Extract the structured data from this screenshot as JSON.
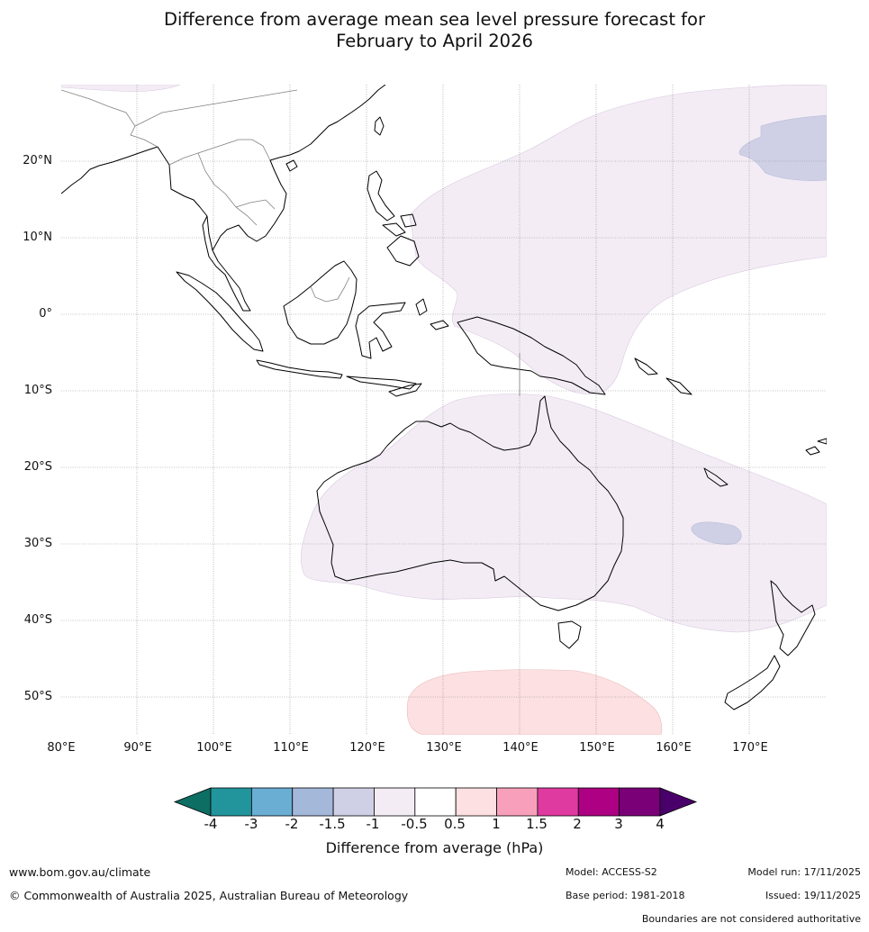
{
  "title_lines": [
    "Difference from average mean sea level pressure forecast for",
    "February to April 2026"
  ],
  "map": {
    "lat_labels": [
      "20°N",
      "10°N",
      "0°",
      "10°S",
      "20°S",
      "30°S",
      "40°S",
      "50°S"
    ],
    "lon_labels": [
      "80°E",
      "90°E",
      "100°E",
      "110°E",
      "120°E",
      "130°E",
      "140°E",
      "150°E",
      "160°E",
      "170°E"
    ],
    "anomaly_regions": [
      {
        "region": "tropical-western-pacific",
        "class": "-1 to -0.5"
      },
      {
        "region": "north-pacific-east",
        "class": "-1.5 to -1"
      },
      {
        "region": "northern-indochina",
        "class": "-1 to -0.5"
      },
      {
        "region": "australia-tasman",
        "class": "-1 to -0.5"
      },
      {
        "region": "coral-sea-new-caledonia",
        "class": "-1.5 to -1"
      },
      {
        "region": "southern-ocean-south-of-australia",
        "class": "0.5 to 1"
      }
    ]
  },
  "colorbar": {
    "colors": [
      "#0d6e63",
      "#21949c",
      "#6aaed4",
      "#a4b8da",
      "#cfd0e6",
      "#f3ecf5",
      "#ffffff",
      "#fde0e1",
      "#f8a0bb",
      "#de3aa0",
      "#ad0082",
      "#7a0078",
      "#4a006a"
    ],
    "ticks": [
      "-4",
      "-3",
      "-2",
      "-1.5",
      "-1",
      "-0.5",
      "0.5",
      "1",
      "1.5",
      "2",
      "3",
      "4"
    ],
    "title": "Difference from average (hPa)"
  },
  "footer": {
    "url": "www.bom.gov.au/climate",
    "copyright": "© Commonwealth of Australia 2025, Australian Bureau of Meteorology",
    "model": "Model: ACCESS-S2",
    "base_period": "Base period: 1981-2018",
    "model_run": "Model run: 17/11/2025",
    "issued": "Issued: 19/11/2025",
    "disclaimer": "Boundaries are not considered authoritative"
  }
}
